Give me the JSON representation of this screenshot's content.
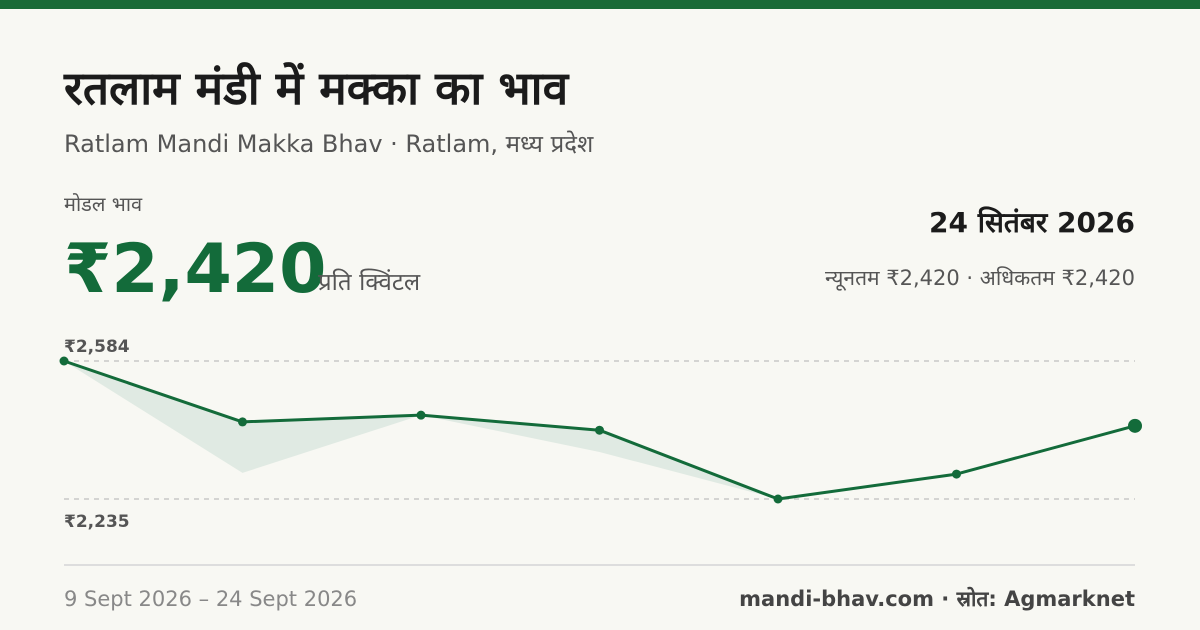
{
  "header": {
    "title": "रतलाम मंडी में मक्का का भाव",
    "subtitle": "Ratlam Mandi Makka Bhav · Ratlam, मध्य प्रदेश"
  },
  "price": {
    "label": "मोडल भाव",
    "value": "₹2,420",
    "unit": "प्रति क्विंटल",
    "date": "24 सितंबर 2026",
    "range": "न्यूनतम ₹2,420 · अधिकतम ₹2,420"
  },
  "chart_data": {
    "type": "line",
    "categories": [
      null,
      null,
      null,
      null,
      null,
      null,
      null
    ],
    "series": [
      {
        "color": "#136b3a",
        "values": [
          2584,
          2430,
          2447,
          2409,
          2235,
          2298,
          2420
        ]
      },
      {
        "color": "#dce8df",
        "values": [
          2584,
          2301,
          2447,
          2354,
          2235,
          null,
          null
        ]
      }
    ],
    "ylim": [
      2235,
      2584
    ],
    "yticks": [
      {
        "value": 2584,
        "label": "₹2,584"
      },
      {
        "value": 2235,
        "label": "₹2,235"
      }
    ],
    "grid": true
  },
  "footer": {
    "period": "9 Sept 2026 – 24 Sept 2026",
    "source": "mandi-bhav.com · स्रोत: Agmarknet"
  }
}
